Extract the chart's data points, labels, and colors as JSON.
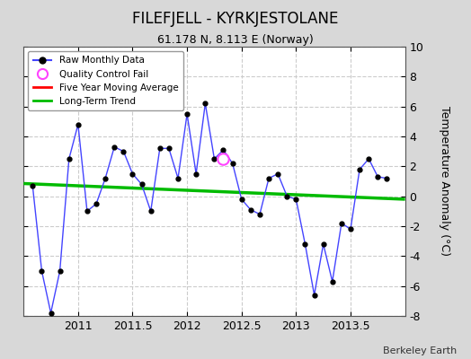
{
  "title": "FILEFJELL - KYRKJESTOLANE",
  "subtitle": "61.178 N, 8.113 E (Norway)",
  "ylabel": "Temperature Anomaly (°C)",
  "attribution": "Berkeley Earth",
  "ylim": [
    -8,
    10
  ],
  "xlim": [
    2010.5,
    2014.0
  ],
  "xticks": [
    2011,
    2011.5,
    2012,
    2012.5,
    2013,
    2013.5
  ],
  "yticks": [
    -8,
    -6,
    -4,
    -2,
    0,
    2,
    4,
    6,
    8,
    10
  ],
  "fig_bg_color": "#d8d8d8",
  "plot_bg_color": "#ffffff",
  "raw_x": [
    2010.583,
    2010.667,
    2010.75,
    2010.833,
    2010.917,
    2011.0,
    2011.083,
    2011.167,
    2011.25,
    2011.333,
    2011.417,
    2011.5,
    2011.583,
    2011.667,
    2011.75,
    2011.833,
    2011.917,
    2012.0,
    2012.083,
    2012.167,
    2012.25,
    2012.333,
    2012.417,
    2012.5,
    2012.583,
    2012.667,
    2012.75,
    2012.833,
    2012.917,
    2013.0,
    2013.083,
    2013.167,
    2013.25,
    2013.333,
    2013.417,
    2013.5,
    2013.583,
    2013.667,
    2013.75,
    2013.833
  ],
  "raw_y": [
    0.7,
    -5.0,
    -7.8,
    -5.0,
    2.5,
    4.8,
    -1.0,
    -0.5,
    1.2,
    3.3,
    3.0,
    1.5,
    0.8,
    -1.0,
    3.2,
    3.2,
    1.2,
    5.5,
    1.5,
    6.2,
    2.5,
    3.1,
    2.2,
    -0.2,
    -0.9,
    -1.2,
    1.2,
    1.5,
    0.0,
    -0.2,
    -3.2,
    -6.6,
    -3.2,
    -5.7,
    -1.8,
    -2.2,
    1.8,
    2.5,
    1.3,
    1.2
  ],
  "qc_fail_x": [
    2012.333
  ],
  "qc_fail_y": [
    2.5
  ],
  "trend_x": [
    2010.5,
    2014.0
  ],
  "trend_y": [
    0.85,
    -0.2
  ],
  "line_color": "#4444ff",
  "marker_color": "#000000",
  "trend_color": "#00bb00",
  "moving_avg_color": "#ff0000",
  "qc_color": "#ff44ff"
}
